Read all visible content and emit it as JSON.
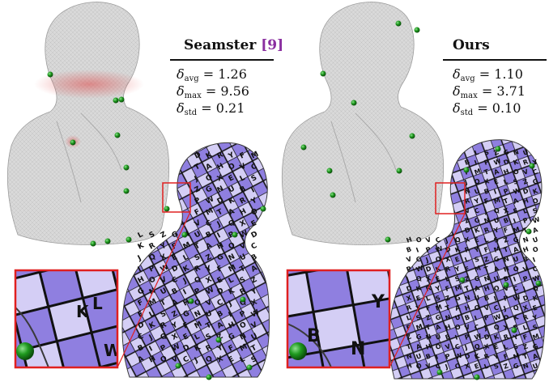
{
  "colors": {
    "bust_gray": "#d9d9d9",
    "seam_red": "#e04a4a",
    "param_purple": "#8f7fe0",
    "param_light": "#d4cef5",
    "singularity_green": "#1f9a1f",
    "zoom_frame": "#e02020",
    "citation": "#8a2fa0"
  },
  "left": {
    "method": "Seamster",
    "citation_open": "[",
    "citation_number": "9",
    "citation_close": "]",
    "avg_symbol": "δ",
    "avg_sub": "avg",
    "avg_value": "= 1.26",
    "max_symbol": "δ",
    "max_sub": "max",
    "max_value": "= 9.56",
    "std_symbol": "δ",
    "std_sub": "std",
    "std_value": "= 0.21",
    "inset_letters": [
      "K",
      "L",
      "W"
    ]
  },
  "right": {
    "method": "Ours",
    "avg_symbol": "δ",
    "avg_sub": "avg",
    "avg_value": "= 1.10",
    "max_symbol": "δ",
    "max_sub": "max",
    "max_value": "= 3.71",
    "std_symbol": "δ",
    "std_sub": "std",
    "std_value": "= 0.10",
    "inset_letters": [
      "B",
      "Y",
      "N"
    ]
  },
  "texture_letters": [
    "A",
    "B",
    "C",
    "D",
    "E",
    "F",
    "G",
    "H",
    "I",
    "J",
    "K",
    "L",
    "M",
    "N",
    "O",
    "P",
    "Q",
    "R",
    "S",
    "T",
    "U",
    "V",
    "W",
    "X",
    "Y",
    "Z"
  ]
}
